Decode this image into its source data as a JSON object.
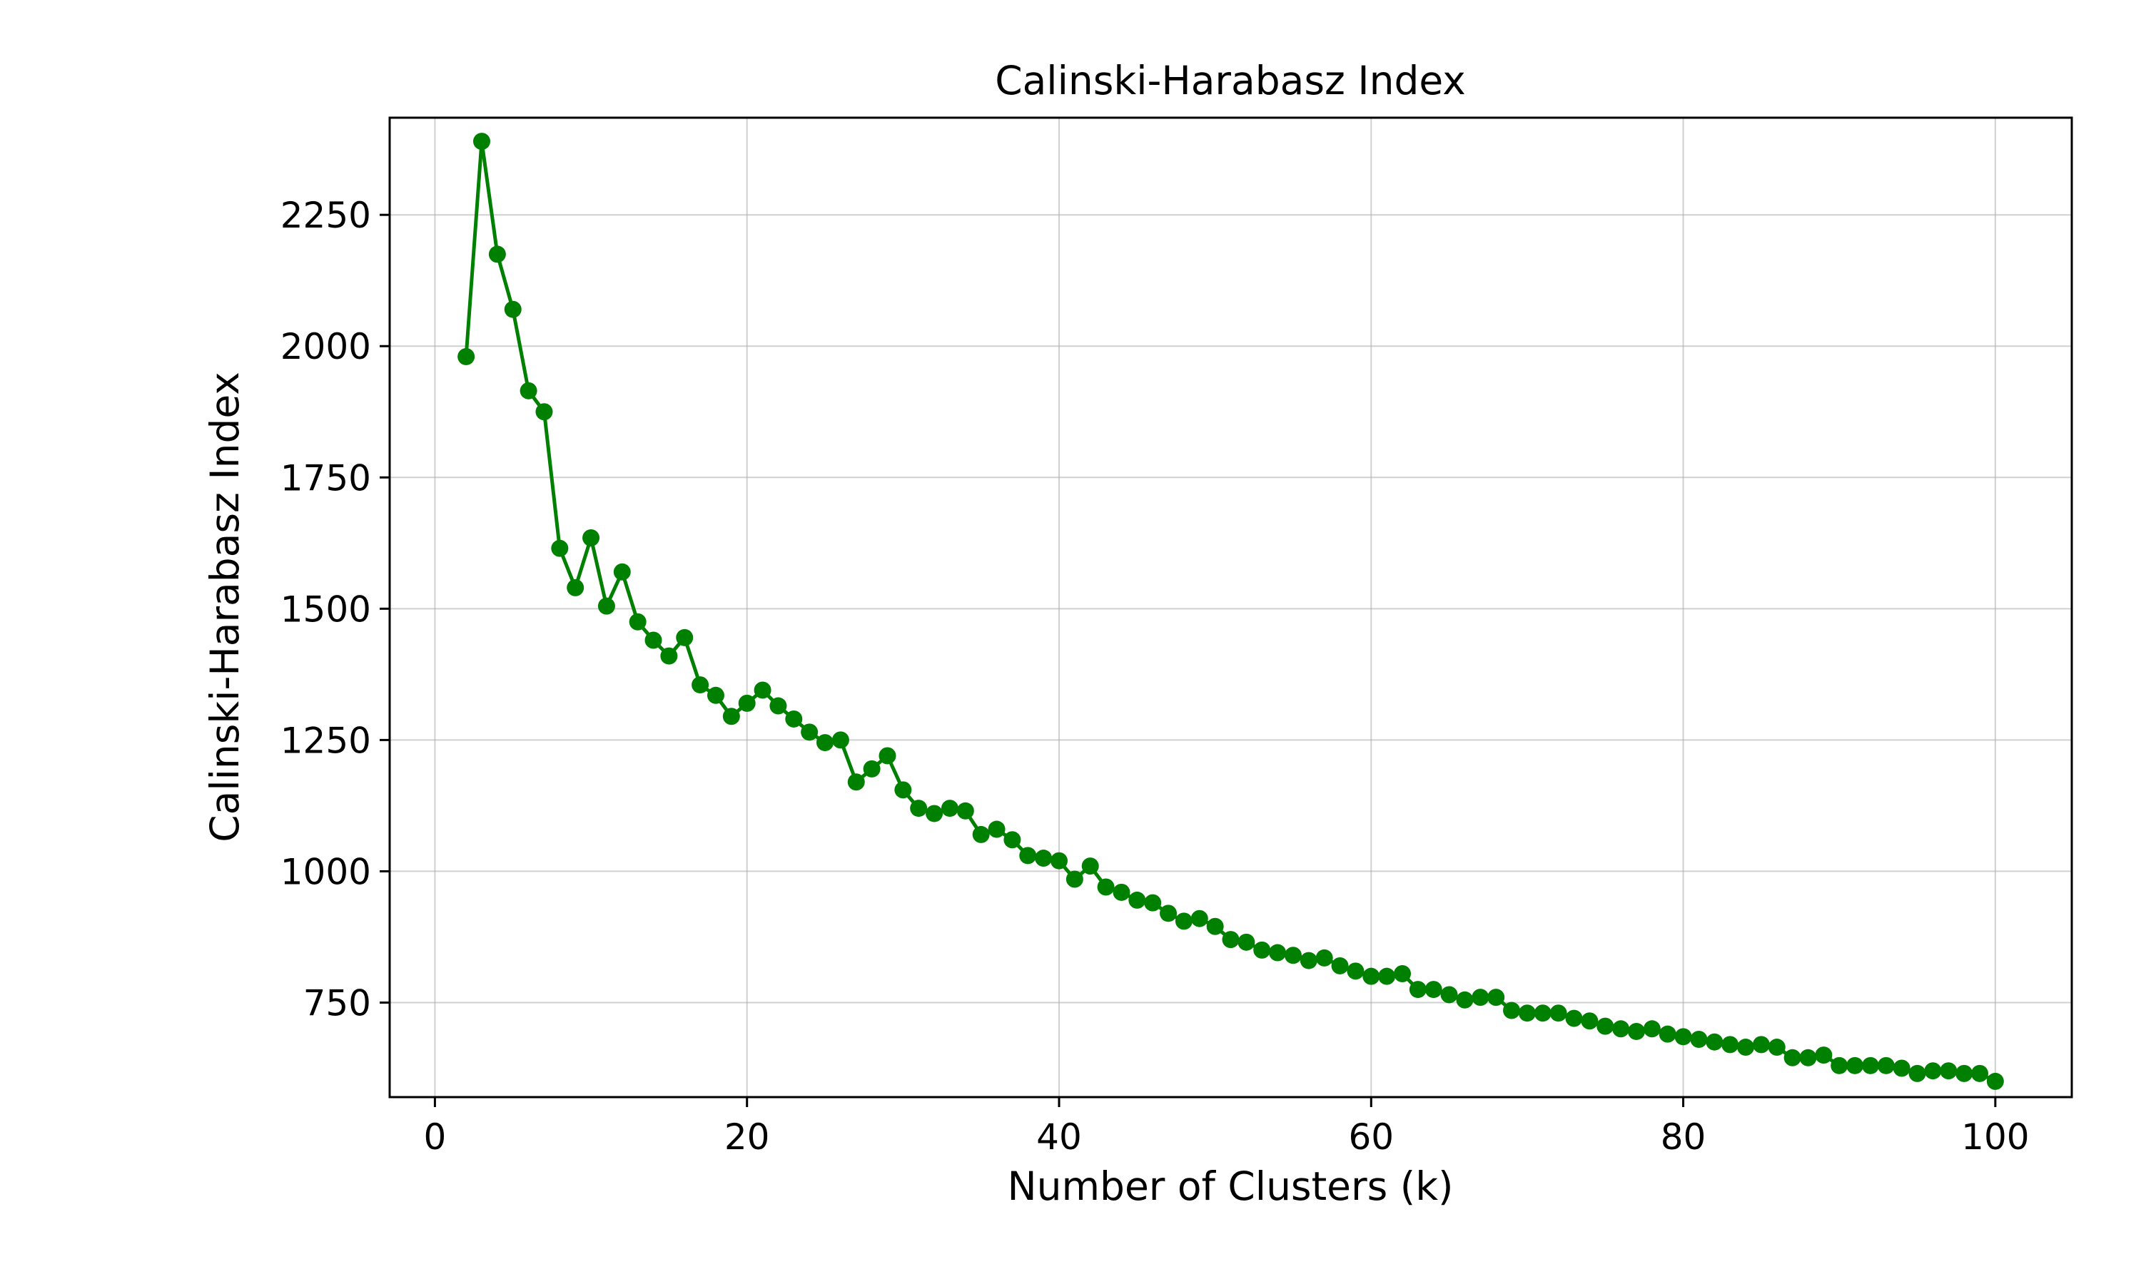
{
  "chart_data": {
    "type": "line",
    "title": "Calinski-Harabasz Index",
    "xlabel": "Number of Clusters (k)",
    "ylabel": "Calinski-Harabasz Index",
    "xlim": [
      -2.9,
      104.9
    ],
    "ylim": [
      570,
      2435
    ],
    "xticks": [
      0,
      20,
      40,
      60,
      80,
      100
    ],
    "yticks": [
      750,
      1000,
      1250,
      1500,
      1750,
      2000,
      2250
    ],
    "grid": true,
    "legend": "none",
    "series": [
      {
        "color": "#008000",
        "marker": "circle",
        "x": [
          2,
          3,
          4,
          5,
          6,
          7,
          8,
          9,
          10,
          11,
          12,
          13,
          14,
          15,
          16,
          17,
          18,
          19,
          20,
          21,
          22,
          23,
          24,
          25,
          26,
          27,
          28,
          29,
          30,
          31,
          32,
          33,
          34,
          35,
          36,
          37,
          38,
          39,
          40,
          41,
          42,
          43,
          44,
          45,
          46,
          47,
          48,
          49,
          50,
          51,
          52,
          53,
          54,
          55,
          56,
          57,
          58,
          59,
          60,
          61,
          62,
          63,
          64,
          65,
          66,
          67,
          68,
          69,
          70,
          71,
          72,
          73,
          74,
          75,
          76,
          77,
          78,
          79,
          80,
          81,
          82,
          83,
          84,
          85,
          86,
          87,
          88,
          89,
          90,
          91,
          92,
          93,
          94,
          95,
          96,
          97,
          98,
          99,
          100
        ],
        "y": [
          1980,
          2390,
          2175,
          2070,
          1915,
          1875,
          1615,
          1540,
          1635,
          1505,
          1570,
          1475,
          1440,
          1410,
          1445,
          1355,
          1335,
          1295,
          1320,
          1345,
          1315,
          1290,
          1265,
          1245,
          1250,
          1170,
          1195,
          1220,
          1155,
          1120,
          1110,
          1120,
          1115,
          1070,
          1080,
          1060,
          1030,
          1025,
          1020,
          985,
          1010,
          970,
          960,
          945,
          940,
          920,
          905,
          910,
          895,
          870,
          865,
          850,
          845,
          840,
          830,
          835,
          820,
          810,
          800,
          800,
          805,
          775,
          775,
          765,
          755,
          760,
          760,
          735,
          730,
          730,
          730,
          720,
          715,
          705,
          700,
          695,
          700,
          690,
          685,
          680,
          675,
          670,
          665,
          670,
          665,
          645,
          645,
          650,
          630,
          630,
          630,
          630,
          625,
          615,
          620,
          620,
          615,
          615,
          600
        ]
      }
    ]
  }
}
